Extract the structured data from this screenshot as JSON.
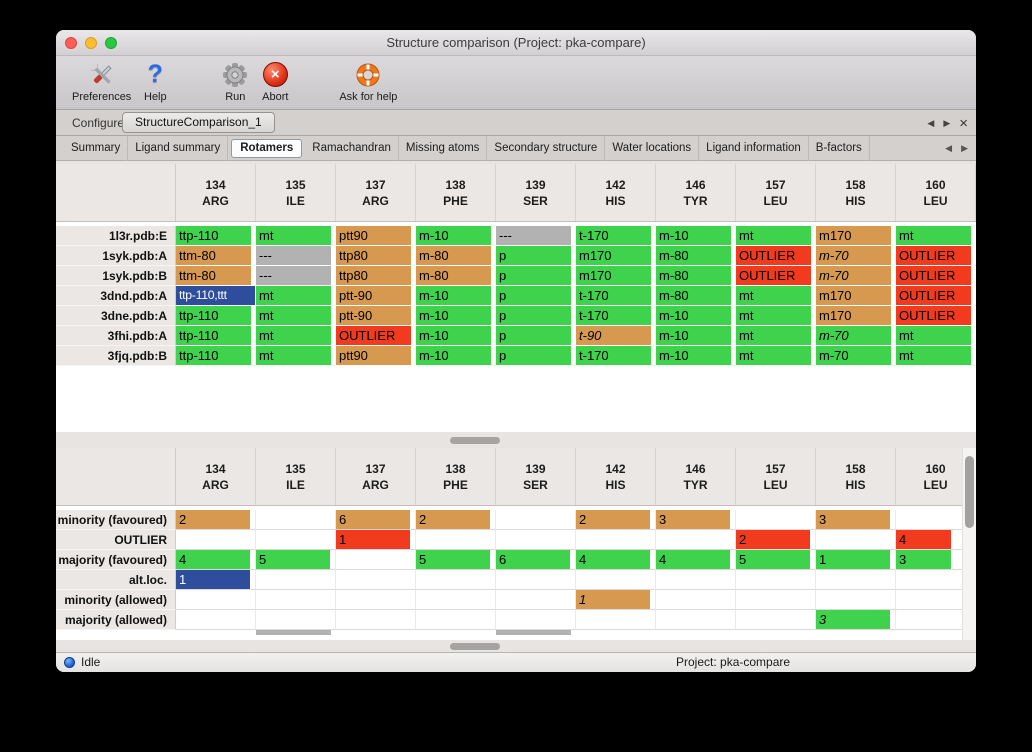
{
  "titlebar": {
    "title": "Structure comparison (Project: pka-compare)"
  },
  "traffic_lights": {
    "close": "#ff5f57",
    "minimize": "#febc2e",
    "zoom": "#28c840"
  },
  "toolbar": {
    "items": [
      {
        "label": "Preferences",
        "icon": "crossed-tools-icon"
      },
      {
        "label": "Help",
        "icon": "question-mark-icon"
      },
      {
        "label": "Run",
        "icon": "gear-icon"
      },
      {
        "label": "Abort",
        "icon": "abort-cross-icon"
      },
      {
        "label": "Ask for help",
        "icon": "lifebuoy-icon"
      }
    ]
  },
  "tabbar": {
    "tabs": [
      {
        "label": "Configure",
        "active": false
      },
      {
        "label": "StructureComparison_1",
        "active": true
      }
    ],
    "nav_prev": "◀",
    "nav_next": "▶",
    "close": "×"
  },
  "subtabbar": {
    "tabs": [
      "Summary",
      "Ligand summary",
      "Rotamers",
      "Ramachandran",
      "Missing atoms",
      "Secondary structure",
      "Water locations",
      "Ligand information",
      "B-factors"
    ],
    "active": "Rotamers",
    "nav_prev": "◀",
    "nav_next": "▶"
  },
  "palette": {
    "green": "#3ed24d",
    "tan": "#d6994f",
    "red": "#f13a1e",
    "gray": "#b2b2b2",
    "blue": "#2e4d9c"
  },
  "columns": [
    {
      "num": "134",
      "res": "ARG"
    },
    {
      "num": "135",
      "res": "ILE"
    },
    {
      "num": "137",
      "res": "ARG"
    },
    {
      "num": "138",
      "res": "PHE"
    },
    {
      "num": "139",
      "res": "SER"
    },
    {
      "num": "142",
      "res": "HIS"
    },
    {
      "num": "146",
      "res": "TYR"
    },
    {
      "num": "157",
      "res": "LEU"
    },
    {
      "num": "158",
      "res": "HIS"
    },
    {
      "num": "160",
      "res": "LEU"
    }
  ],
  "upper_table": {
    "rows": [
      {
        "label": "1l3r.pdb:E",
        "cells": [
          {
            "t": "ttp-110",
            "c": "green"
          },
          {
            "t": "mt",
            "c": "green"
          },
          {
            "t": "ptt90",
            "c": "tan"
          },
          {
            "t": "m-10",
            "c": "green"
          },
          {
            "t": "---",
            "c": "gray"
          },
          {
            "t": "t-170",
            "c": "green"
          },
          {
            "t": "m-10",
            "c": "green"
          },
          {
            "t": "mt",
            "c": "green"
          },
          {
            "t": "m170",
            "c": "tan"
          },
          {
            "t": "mt",
            "c": "green"
          }
        ]
      },
      {
        "label": "1syk.pdb:A",
        "cells": [
          {
            "t": "ttm-80",
            "c": "tan"
          },
          {
            "t": "---",
            "c": "gray"
          },
          {
            "t": "ttp80",
            "c": "tan"
          },
          {
            "t": "m-80",
            "c": "tan"
          },
          {
            "t": "p",
            "c": "green"
          },
          {
            "t": "m170",
            "c": "green"
          },
          {
            "t": "m-80",
            "c": "green"
          },
          {
            "t": "OUTLIER",
            "c": "red"
          },
          {
            "t": "m-70",
            "c": "tan",
            "i": true
          },
          {
            "t": "OUTLIER",
            "c": "red"
          }
        ]
      },
      {
        "label": "1syk.pdb:B",
        "cells": [
          {
            "t": "ttm-80",
            "c": "tan"
          },
          {
            "t": "---",
            "c": "gray"
          },
          {
            "t": "ttp80",
            "c": "tan"
          },
          {
            "t": "m-80",
            "c": "tan"
          },
          {
            "t": "p",
            "c": "green"
          },
          {
            "t": "m170",
            "c": "green"
          },
          {
            "t": "m-80",
            "c": "green"
          },
          {
            "t": "OUTLIER",
            "c": "red"
          },
          {
            "t": "m-70",
            "c": "tan",
            "i": true
          },
          {
            "t": "OUTLIER",
            "c": "red"
          }
        ]
      },
      {
        "label": "3dnd.pdb:A",
        "cells": [
          {
            "t": "ttp-110,ttt",
            "c": "blue"
          },
          {
            "t": "mt",
            "c": "green"
          },
          {
            "t": "ptt-90",
            "c": "tan"
          },
          {
            "t": "m-10",
            "c": "green"
          },
          {
            "t": "p",
            "c": "green"
          },
          {
            "t": "t-170",
            "c": "green"
          },
          {
            "t": "m-80",
            "c": "green"
          },
          {
            "t": "mt",
            "c": "green"
          },
          {
            "t": "m170",
            "c": "tan"
          },
          {
            "t": "OUTLIER",
            "c": "red"
          }
        ]
      },
      {
        "label": "3dne.pdb:A",
        "cells": [
          {
            "t": "ttp-110",
            "c": "green"
          },
          {
            "t": "mt",
            "c": "green"
          },
          {
            "t": "ptt-90",
            "c": "tan"
          },
          {
            "t": "m-10",
            "c": "green"
          },
          {
            "t": "p",
            "c": "green"
          },
          {
            "t": "t-170",
            "c": "green"
          },
          {
            "t": "m-10",
            "c": "green"
          },
          {
            "t": "mt",
            "c": "green"
          },
          {
            "t": "m170",
            "c": "tan"
          },
          {
            "t": "OUTLIER",
            "c": "red"
          }
        ]
      },
      {
        "label": "3fhi.pdb:A",
        "cells": [
          {
            "t": "ttp-110",
            "c": "green"
          },
          {
            "t": "mt",
            "c": "green"
          },
          {
            "t": "OUTLIER",
            "c": "red"
          },
          {
            "t": "m-10",
            "c": "green"
          },
          {
            "t": "p",
            "c": "green"
          },
          {
            "t": "t-90",
            "c": "tan",
            "i": true
          },
          {
            "t": "m-10",
            "c": "green"
          },
          {
            "t": "mt",
            "c": "green"
          },
          {
            "t": "m-70",
            "c": "green",
            "i": true
          },
          {
            "t": "mt",
            "c": "green"
          }
        ]
      },
      {
        "label": "3fjq.pdb:B",
        "cells": [
          {
            "t": "ttp-110",
            "c": "green"
          },
          {
            "t": "mt",
            "c": "green"
          },
          {
            "t": "ptt90",
            "c": "tan"
          },
          {
            "t": "m-10",
            "c": "green"
          },
          {
            "t": "p",
            "c": "green"
          },
          {
            "t": "t-170",
            "c": "green"
          },
          {
            "t": "m-10",
            "c": "green"
          },
          {
            "t": "mt",
            "c": "green"
          },
          {
            "t": "m-70",
            "c": "green"
          },
          {
            "t": "mt",
            "c": "green"
          }
        ]
      }
    ]
  },
  "lower_table": {
    "rows": [
      {
        "label": "minority (favoured)",
        "cells": [
          {
            "t": "2",
            "c": "tan"
          },
          {
            "t": "",
            "c": "none"
          },
          {
            "t": "6",
            "c": "tan"
          },
          {
            "t": "2",
            "c": "tan"
          },
          {
            "t": "",
            "c": "none"
          },
          {
            "t": "2",
            "c": "tan"
          },
          {
            "t": "3",
            "c": "tan"
          },
          {
            "t": "",
            "c": "none"
          },
          {
            "t": "3",
            "c": "tan"
          },
          {
            "t": "",
            "c": "none"
          }
        ]
      },
      {
        "label": "OUTLIER",
        "cells": [
          {
            "t": "",
            "c": "none"
          },
          {
            "t": "",
            "c": "none"
          },
          {
            "t": "1",
            "c": "red"
          },
          {
            "t": "",
            "c": "none"
          },
          {
            "t": "",
            "c": "none"
          },
          {
            "t": "",
            "c": "none"
          },
          {
            "t": "",
            "c": "none"
          },
          {
            "t": "2",
            "c": "red"
          },
          {
            "t": "",
            "c": "none"
          },
          {
            "t": "4",
            "c": "red"
          }
        ]
      },
      {
        "label": "majority (favoured)",
        "cells": [
          {
            "t": "4",
            "c": "green"
          },
          {
            "t": "5",
            "c": "green"
          },
          {
            "t": "",
            "c": "none"
          },
          {
            "t": "5",
            "c": "green"
          },
          {
            "t": "6",
            "c": "green"
          },
          {
            "t": "4",
            "c": "green"
          },
          {
            "t": "4",
            "c": "green"
          },
          {
            "t": "5",
            "c": "green"
          },
          {
            "t": "1",
            "c": "green"
          },
          {
            "t": "3",
            "c": "green"
          }
        ]
      },
      {
        "label": "alt.loc.",
        "cells": [
          {
            "t": "1",
            "c": "blue"
          },
          {
            "t": "",
            "c": "none"
          },
          {
            "t": "",
            "c": "none"
          },
          {
            "t": "",
            "c": "none"
          },
          {
            "t": "",
            "c": "none"
          },
          {
            "t": "",
            "c": "none"
          },
          {
            "t": "",
            "c": "none"
          },
          {
            "t": "",
            "c": "none"
          },
          {
            "t": "",
            "c": "none"
          },
          {
            "t": "",
            "c": "none"
          }
        ]
      },
      {
        "label": "minority (allowed)",
        "cells": [
          {
            "t": "",
            "c": "none"
          },
          {
            "t": "",
            "c": "none"
          },
          {
            "t": "",
            "c": "none"
          },
          {
            "t": "",
            "c": "none"
          },
          {
            "t": "",
            "c": "none"
          },
          {
            "t": "1",
            "c": "tan",
            "i": true
          },
          {
            "t": "",
            "c": "none"
          },
          {
            "t": "",
            "c": "none"
          },
          {
            "t": "",
            "c": "none"
          },
          {
            "t": "",
            "c": "none"
          }
        ]
      },
      {
        "label": "majority (allowed)",
        "cells": [
          {
            "t": "",
            "c": "none"
          },
          {
            "t": "",
            "c": "none"
          },
          {
            "t": "",
            "c": "none"
          },
          {
            "t": "",
            "c": "none"
          },
          {
            "t": "",
            "c": "none"
          },
          {
            "t": "",
            "c": "none"
          },
          {
            "t": "",
            "c": "none"
          },
          {
            "t": "",
            "c": "none"
          },
          {
            "t": "3",
            "c": "green",
            "i": true
          },
          {
            "t": "",
            "c": "none"
          }
        ]
      }
    ],
    "partial_row_cols": [
      1,
      4
    ]
  },
  "statusbar": {
    "state": "Idle",
    "project": "Project: pka-compare"
  }
}
